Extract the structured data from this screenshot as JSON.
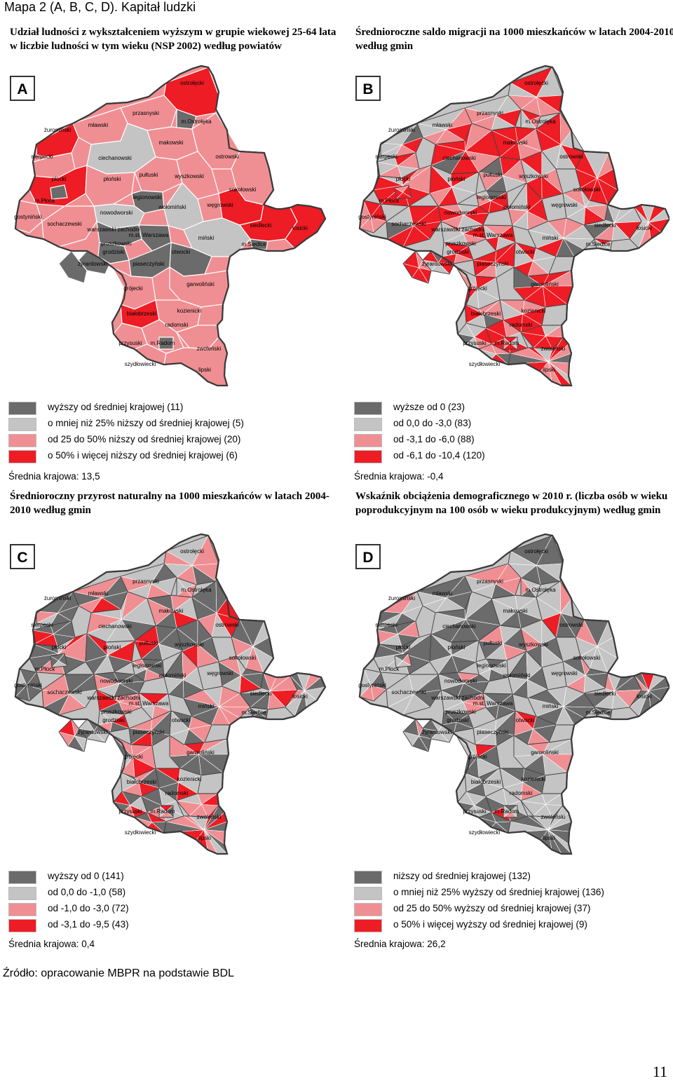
{
  "document": {
    "title": "Mapa 2 (A, B, C, D). Kapitał ludzki",
    "source": "Źródło: opracowanie MBPR na podstawie BDL",
    "page_number": "11"
  },
  "palette": {
    "dark_gray": "#6b6b6b",
    "light_gray": "#c4c4c4",
    "pink": "#f08f93",
    "red": "#ee1c24",
    "border": "#3a3a3a"
  },
  "map_labels": [
    "ostrołęcki",
    "przasnyski",
    "m.Ostrołęka",
    "mławski",
    "żuromiński",
    "makowski",
    "sierpecki",
    "ciechanowski",
    "ostrowski",
    "płocki",
    "płoński",
    "pułtuski",
    "wyszkowski",
    "m.Płock",
    "legionowski",
    "sokołowski",
    "gostyniński",
    "nowodworski",
    "wołomiński",
    "węgrowski",
    "sochaczewski",
    "warszawski zachodni",
    "m.st. Warszawa",
    "siedlecki",
    "łosicki",
    "miński",
    "m.Siedlce",
    "pruszkowski",
    "grodziski",
    "otwocki",
    "żyrardowski",
    "piaseczyński",
    "grójecki",
    "garwoliński",
    "białobrzeski",
    "kozienicki",
    "radomski",
    "przysuski",
    "m.Radom",
    "zwoleński",
    "szydłowiecki",
    "lipski"
  ],
  "panels": [
    {
      "letter": "A",
      "title": "Udział ludności z wykształceniem wyższym w grupie wiekowej 25-64 lata w liczbie ludności w tym wieku (NSP 2002) według powiatów",
      "legend": [
        {
          "label": "wyższy od średniej krajowej (11)",
          "color": "#6b6b6b"
        },
        {
          "label": "o mniej niż 25% niższy od średniej krajowej (5)",
          "color": "#c4c4c4"
        },
        {
          "label": "od 25 do 50% niższy od średniej krajowej (20)",
          "color": "#f08f93"
        },
        {
          "label": "o 50% i więcej niższy od średniej krajowej (6)",
          "color": "#ee1c24"
        }
      ],
      "mean": "Średnia krajowa: 13,5"
    },
    {
      "letter": "B",
      "title": "Średnioroczne saldo migracji na 1000 mieszkańców w latach 2004-2010 według gmin",
      "legend": [
        {
          "label": "wyższe od 0 (23)",
          "color": "#6b6b6b"
        },
        {
          "label": "od 0,0 do -3,0 (83)",
          "color": "#c4c4c4"
        },
        {
          "label": "od -3,1 do -6,0 (88)",
          "color": "#f08f93"
        },
        {
          "label": "od -6,1 do -10,4 (120)",
          "color": "#ee1c24"
        }
      ],
      "mean": "Średnia krajowa: -0,4"
    },
    {
      "letter": "C",
      "title": "Średnioroczny przyrost naturalny na 1000 mieszkańców w latach 2004- 2010 według gmin",
      "legend": [
        {
          "label": "wyższy od 0 (141)",
          "color": "#6b6b6b"
        },
        {
          "label": "od 0,0 do -1,0 (58)",
          "color": "#c4c4c4"
        },
        {
          "label": "od -1,0 do -3,0 (72)",
          "color": "#f08f93"
        },
        {
          "label": "od -3,1 do -9,5 (43)",
          "color": "#ee1c24"
        }
      ],
      "mean": "Średnia krajowa: 0,4"
    },
    {
      "letter": "D",
      "title": "Wskaźnik obciążenia demograficznego w 2010 r. (liczba osób w wieku poprodukcyjnym na 100 osób w wieku produkcyjnym) według gmin",
      "legend": [
        {
          "label": "niższy od średniej krajowej (132)",
          "color": "#6b6b6b"
        },
        {
          "label": "o mniej niż 25% wyższy od średniej krajowej (136)",
          "color": "#c4c4c4"
        },
        {
          "label": "od 25 do 50% wyższy od średniej krajowej (37)",
          "color": "#f08f93"
        },
        {
          "label": "o 50% i więcej wyższy od średniej krajowej (9)",
          "color": "#ee1c24"
        }
      ],
      "mean": "Średnia krajowa: 26,2"
    }
  ]
}
